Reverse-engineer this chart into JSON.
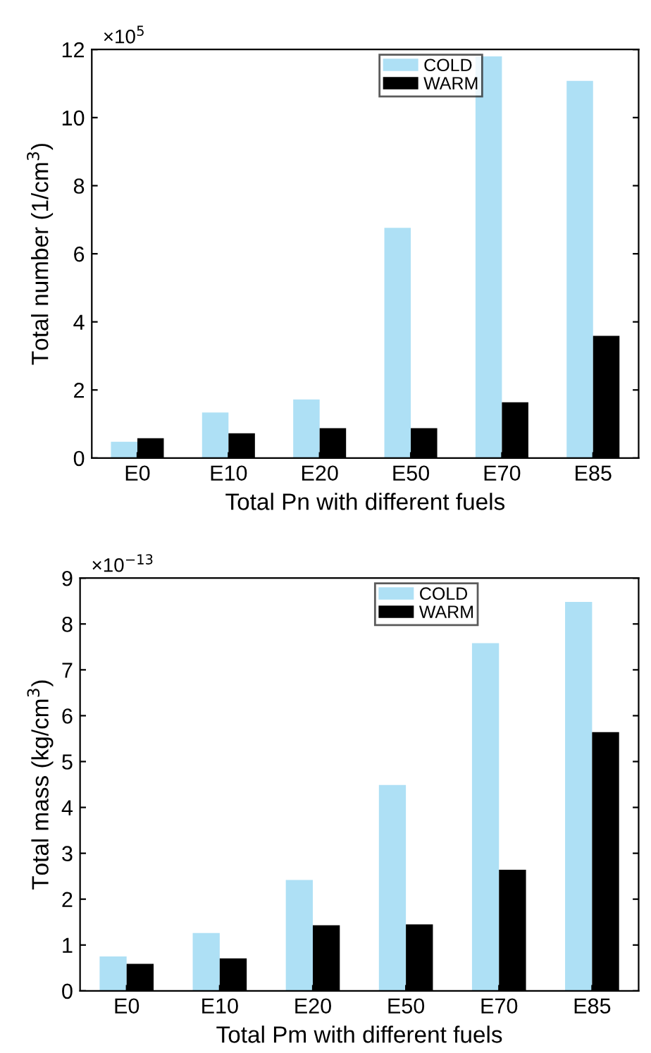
{
  "chart_data": [
    {
      "type": "bar",
      "xlabel": "Total Pn with different fuels",
      "ylabel": "Total number (1/cm$^{3}$)",
      "annotations": [
        "×10$^{5}$"
      ],
      "categories": [
        "E0",
        "E10",
        "E20",
        "E50",
        "E70",
        "E85"
      ],
      "series": [
        {
          "name": "COLD",
          "color": "#aee0f5",
          "values": [
            0.48,
            1.34,
            1.72,
            6.76,
            11.8,
            11.08
          ]
        },
        {
          "name": "WARM",
          "color": "#000000",
          "values": [
            0.58,
            0.73,
            0.88,
            0.88,
            1.64,
            3.59
          ]
        }
      ],
      "ylim": [
        0,
        12
      ],
      "yticks": [
        0,
        2,
        4,
        6,
        8,
        10,
        12
      ],
      "legend": "top"
    },
    {
      "type": "bar",
      "xlabel": "Total Pm with different fuels",
      "ylabel": "Total mass (kg/cm$^{3}$)",
      "annotations": [
        "×10$^{−13}$"
      ],
      "categories": [
        "E0",
        "E10",
        "E20",
        "E50",
        "E70",
        "E85"
      ],
      "series": [
        {
          "name": "COLD",
          "color": "#aee0f5",
          "values": [
            0.75,
            1.26,
            2.42,
            4.49,
            7.58,
            8.48
          ]
        },
        {
          "name": "WARM",
          "color": "#000000",
          "values": [
            0.59,
            0.71,
            1.43,
            1.45,
            2.64,
            5.64
          ]
        }
      ],
      "ylim": [
        0,
        9
      ],
      "yticks": [
        0,
        1,
        2,
        3,
        4,
        5,
        6,
        7,
        8,
        9
      ],
      "legend": "top"
    }
  ]
}
